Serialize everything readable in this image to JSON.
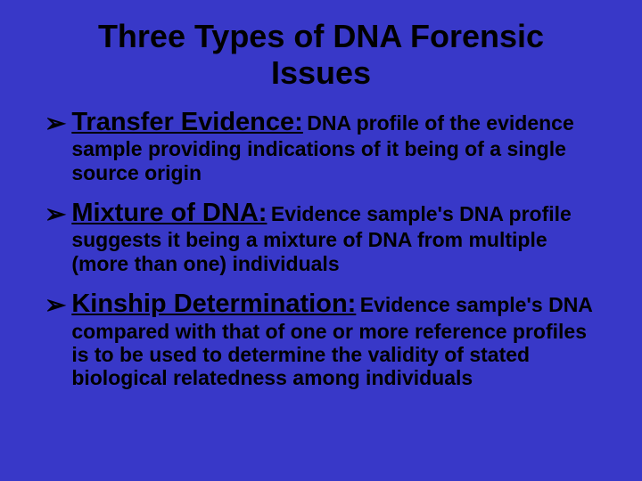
{
  "slide": {
    "background_color": "#3838c8",
    "text_color": "#000000",
    "title": "Three Types of DNA Forensic Issues",
    "title_fontsize": 36,
    "heading_fontsize": 29,
    "body_fontsize": 23,
    "bullet_glyph": "➢",
    "items": [
      {
        "heading": "Transfer Evidence:",
        "body": "DNA profile of the evidence sample providing indications of it being of a single source origin"
      },
      {
        "heading": "Mixture of DNA:",
        "body": "Evidence sample's DNA profile suggests it being a mixture of DNA from multiple (more than one) individuals"
      },
      {
        "heading": "Kinship Determination:",
        "body": "Evidence sample's DNA compared with that of one or more reference profiles is to be used to determine the validity of stated biological relatedness among individuals"
      }
    ]
  }
}
